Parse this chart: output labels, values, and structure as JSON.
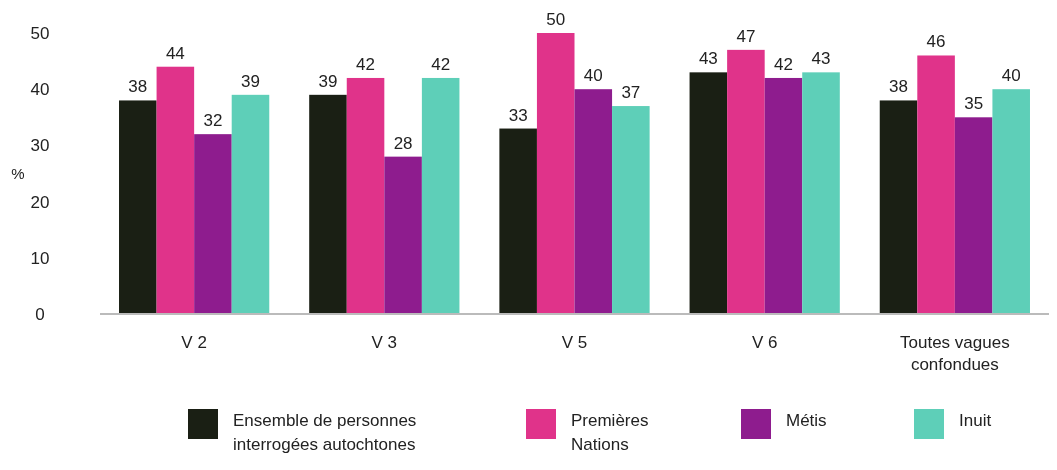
{
  "chart_data": {
    "type": "bar",
    "ylabel": "%",
    "categories": [
      "V 2",
      "V 3",
      "V 5",
      "V 6",
      "Toutes vagues confondues"
    ],
    "series": [
      {
        "name": "Ensemble de personnes interrogées autochtones",
        "color": "#1a1f14",
        "values": [
          38,
          39,
          33,
          43,
          38
        ]
      },
      {
        "name": "Premières Nations",
        "color": "#e0338a",
        "values": [
          44,
          42,
          50,
          47,
          46
        ]
      },
      {
        "name": "Métis",
        "color": "#8e1c8e",
        "values": [
          32,
          28,
          40,
          42,
          35
        ]
      },
      {
        "name": "Inuit",
        "color": "#5ecfb8",
        "values": [
          39,
          42,
          37,
          43,
          40
        ]
      }
    ],
    "ylim": [
      0,
      50
    ],
    "yticks": [
      0,
      10,
      20,
      30,
      40,
      50
    ],
    "grid": false,
    "legend": "bottom",
    "data_labels": true
  }
}
